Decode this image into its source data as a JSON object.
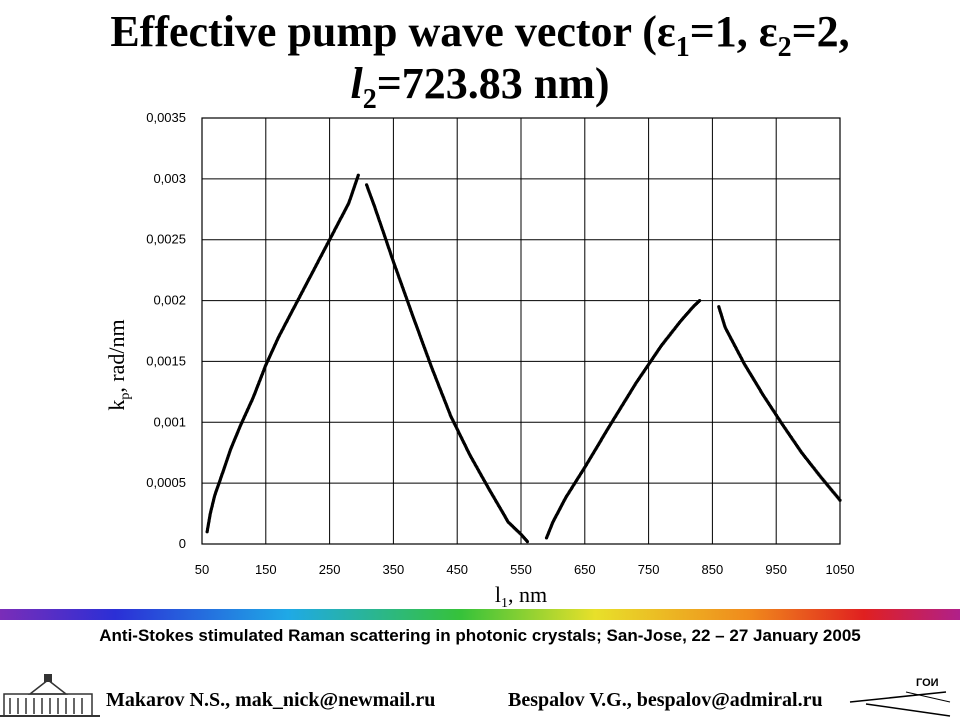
{
  "slide": {
    "title_line1_a": "Effective pump wave vector (ε",
    "title_sub1": "1",
    "title_line1_b": "=1, ε",
    "title_sub2": "2",
    "title_line1_c": "=2,",
    "title_line2_a": "l",
    "title_sub3": "2",
    "title_line2_b": "=723.83 nm)"
  },
  "chart_data": {
    "type": "scatter",
    "title": "",
    "xlabel_main": "l",
    "xlabel_sub": "1",
    "xlabel_rest": ",  nm",
    "ylabel_main": "k",
    "ylabel_sub": "p",
    "ylabel_rest": ",  rad/nm",
    "xlim": [
      50,
      1050
    ],
    "ylim": [
      0,
      0.0035
    ],
    "x_ticks": [
      50,
      150,
      250,
      350,
      450,
      550,
      650,
      750,
      850,
      950,
      1050
    ],
    "x_tick_labels": [
      "50",
      "150",
      "250",
      "350",
      "450",
      "550",
      "650",
      "750",
      "850",
      "950",
      "1050"
    ],
    "y_ticks": [
      0,
      0.0005,
      0.001,
      0.0015,
      0.002,
      0.0025,
      0.003,
      0.0035
    ],
    "y_tick_labels": [
      "0",
      "0,0005",
      "0,001",
      "0,0015",
      "0,002",
      "0,0025",
      "0,003",
      "0,0035"
    ],
    "grid": true,
    "marker_color": "#000000",
    "series": [
      {
        "x": [
          58,
          63,
          70,
          80,
          95,
          110,
          130,
          150,
          170,
          200,
          230,
          260,
          280,
          295
        ],
        "y": [
          0.0001,
          0.00025,
          0.0004,
          0.00055,
          0.00078,
          0.00097,
          0.0012,
          0.00147,
          0.0017,
          0.002,
          0.0023,
          0.0026,
          0.0028,
          0.00303
        ]
      },
      {
        "x": [
          308,
          320,
          350,
          380,
          410,
          440,
          470,
          500,
          530,
          550,
          560
        ],
        "y": [
          0.00295,
          0.00278,
          0.00232,
          0.00188,
          0.00145,
          0.00105,
          0.00073,
          0.00045,
          0.00018,
          8e-05,
          2e-05
        ]
      },
      {
        "x": [
          590,
          600,
          620,
          650,
          690,
          730,
          770,
          800,
          820,
          830
        ],
        "y": [
          5e-05,
          0.00018,
          0.00038,
          0.00063,
          0.00098,
          0.00132,
          0.00163,
          0.00183,
          0.00195,
          0.002
        ]
      },
      {
        "x": [
          860,
          870,
          900,
          930,
          960,
          990,
          1020,
          1050
        ],
        "y": [
          0.00195,
          0.00178,
          0.00148,
          0.00122,
          0.00098,
          0.00075,
          0.00055,
          0.00036
        ]
      }
    ]
  },
  "footer": {
    "conference": "Anti-Stokes stimulated Raman scattering in photonic crystals; San-Jose, 22 – 27 January  2005",
    "author1": "Makarov N.S., mak_nick@newmail.ru",
    "author2": "Bespalov V.G., bespalov@admiral.ru",
    "logo_right_text": "ГОИ"
  }
}
